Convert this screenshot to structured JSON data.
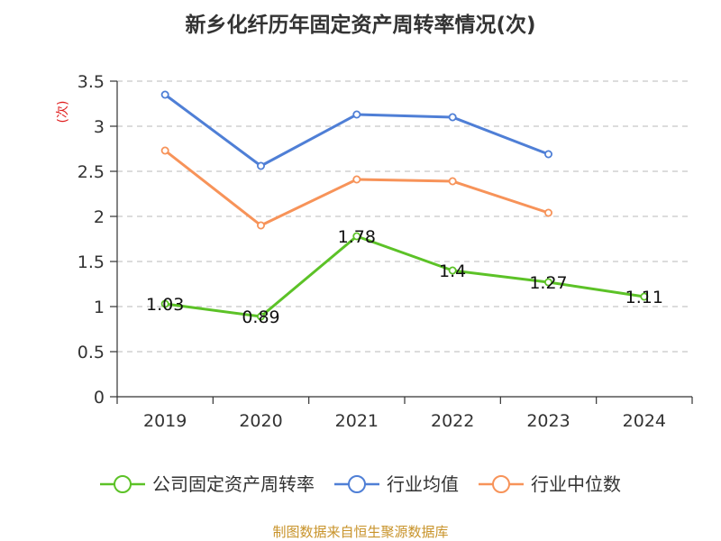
{
  "title": "新乡化纤历年固定资产周转率情况(次)",
  "source": "制图数据来自恒生聚源数据库",
  "chart_data": {
    "type": "line",
    "title": "新乡化纤历年固定资产周转率情况(次)",
    "ylabel": "(次)",
    "xlabel": "",
    "categories": [
      "2019",
      "2020",
      "2021",
      "2022",
      "2023",
      "2024"
    ],
    "ylim": [
      0,
      3.5
    ],
    "yticks": [
      0,
      0.5,
      1,
      1.5,
      2,
      2.5,
      3,
      3.5
    ],
    "ytick_labels": [
      "0",
      "0.5",
      "1",
      "1.5",
      "2",
      "2.5",
      "3",
      "3.5"
    ],
    "grid": true,
    "legend_position": "bottom",
    "series": [
      {
        "name": "公司固定资产周转率",
        "color": "#5cc227",
        "values": [
          1.03,
          0.89,
          1.78,
          1.4,
          1.27,
          1.11
        ],
        "labels": [
          "1.03",
          "0.89",
          "1.78",
          "1.4",
          "1.27",
          "1.11"
        ],
        "show_labels": true
      },
      {
        "name": "行业均值",
        "color": "#4f7fd6",
        "values": [
          3.35,
          2.56,
          3.13,
          3.1,
          2.69,
          null
        ],
        "show_labels": false
      },
      {
        "name": "行业中位数",
        "color": "#f79359",
        "values": [
          2.73,
          1.9,
          2.41,
          2.39,
          2.04,
          null
        ],
        "show_labels": false
      }
    ]
  }
}
